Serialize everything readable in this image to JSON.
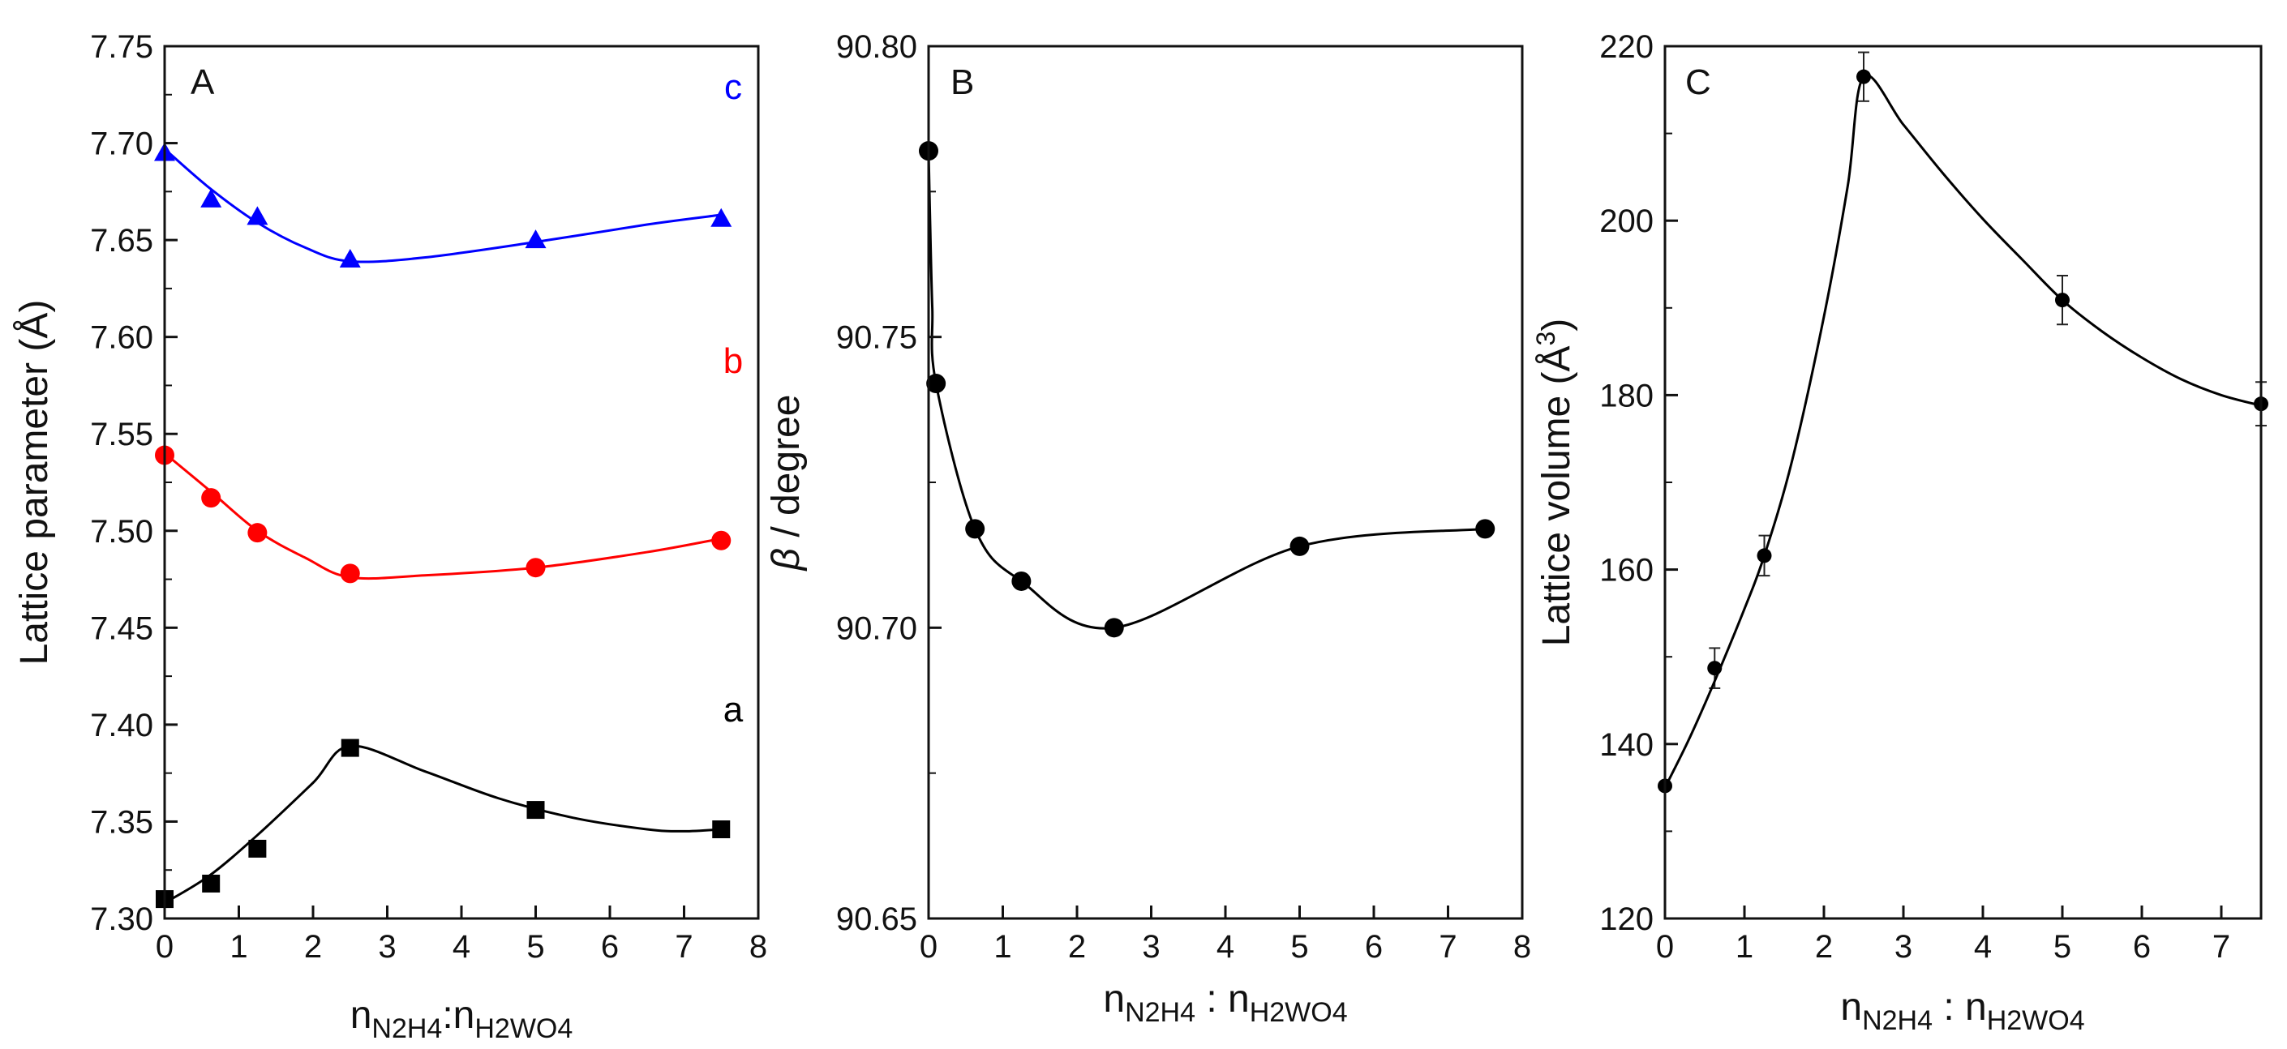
{
  "chart_data": [
    {
      "type": "scatter",
      "panel": "A",
      "xlabel": {
        "main1": "n",
        "sub1": "N2H4",
        "sep": ":",
        "main2": "n",
        "sub2": "H2WO4"
      },
      "ylabel": "Lattice parameter (Å)",
      "xlim": [
        0,
        8
      ],
      "ylim": [
        7.3,
        7.75
      ],
      "xticks": [
        0,
        1,
        2,
        3,
        4,
        5,
        6,
        7,
        8
      ],
      "yticks": [
        "7.30",
        "7.35",
        "7.40",
        "7.45",
        "7.50",
        "7.55",
        "7.60",
        "7.65",
        "7.70",
        "7.75"
      ],
      "series": [
        {
          "name": "a",
          "color": "#000000",
          "marker": "square",
          "x": [
            0,
            0.625,
            1.25,
            2.5,
            5,
            7.5
          ],
          "y": [
            7.31,
            7.318,
            7.336,
            7.388,
            7.356,
            7.346
          ],
          "fit": [
            [
              0,
              7.308
            ],
            [
              0.6,
              7.322
            ],
            [
              1.25,
              7.343
            ],
            [
              2.0,
              7.37
            ],
            [
              2.5,
              7.389
            ],
            [
              3.5,
              7.376
            ],
            [
              4.5,
              7.362
            ],
            [
              5.5,
              7.352
            ],
            [
              6.5,
              7.346
            ],
            [
              7.0,
              7.345
            ],
            [
              7.5,
              7.346
            ]
          ]
        },
        {
          "name": "b",
          "color": "#ff0000",
          "marker": "circle",
          "x": [
            0,
            0.625,
            1.25,
            2.5,
            5,
            7.5
          ],
          "y": [
            7.539,
            7.517,
            7.499,
            7.478,
            7.481,
            7.495
          ],
          "fit": [
            [
              0,
              7.54
            ],
            [
              0.6,
              7.521
            ],
            [
              1.25,
              7.5
            ],
            [
              1.9,
              7.486
            ],
            [
              2.5,
              7.476
            ],
            [
              3.5,
              7.477
            ],
            [
              5,
              7.481
            ],
            [
              6.5,
              7.489
            ],
            [
              7.5,
              7.496
            ]
          ]
        },
        {
          "name": "c",
          "color": "#0000ff",
          "marker": "triangle",
          "x": [
            0,
            0.625,
            1.25,
            2.5,
            5,
            7.5
          ],
          "y": [
            7.695,
            7.671,
            7.662,
            7.64,
            7.65,
            7.661
          ],
          "fit": [
            [
              0,
              7.697
            ],
            [
              0.6,
              7.677
            ],
            [
              1.25,
              7.659
            ],
            [
              1.9,
              7.646
            ],
            [
              2.5,
              7.639
            ],
            [
              3.5,
              7.641
            ],
            [
              5,
              7.649
            ],
            [
              6.5,
              7.658
            ],
            [
              7.5,
              7.663
            ]
          ]
        }
      ]
    },
    {
      "type": "line",
      "panel": "B",
      "xlabel": {
        "main1": "n",
        "sub1": "N2H4",
        "sep": " : ",
        "main2": "n",
        "sub2": "H2WO4"
      },
      "ylabel": {
        "sym": "β",
        "rest": " / degree"
      },
      "xlim": [
        0,
        8
      ],
      "ylim": [
        90.65,
        90.8
      ],
      "xticks": [
        0,
        1,
        2,
        3,
        4,
        5,
        6,
        7,
        8
      ],
      "yticks": [
        "90.65",
        "90.70",
        "90.75",
        "90.80"
      ],
      "series": [
        {
          "name": "beta",
          "color": "#000000",
          "marker": "circle",
          "x": [
            0,
            0.1,
            0.625,
            1.25,
            2.5,
            5,
            7.5
          ],
          "y": [
            90.782,
            90.742,
            90.717,
            90.708,
            90.7,
            90.714,
            90.717
          ],
          "fit": [
            [
              0,
              90.782
            ],
            [
              0.02,
              90.77
            ],
            [
              0.05,
              90.755
            ],
            [
              0.1,
              90.742
            ],
            [
              0.625,
              90.717
            ],
            [
              1.25,
              90.708
            ],
            [
              2.5,
              90.7
            ],
            [
              5,
              90.714
            ],
            [
              7.5,
              90.717
            ]
          ]
        }
      ]
    },
    {
      "type": "scatter",
      "panel": "C",
      "xlabel": {
        "main1": "n",
        "sub1": "N2H4",
        "sep": " : ",
        "main2": "n",
        "sub2": "H2WO4"
      },
      "ylabel": {
        "main": "Lattice volume (",
        "unit": "Å",
        "sup": "3",
        "close": ")"
      },
      "xlim": [
        0,
        7.5
      ],
      "ylim": [
        120,
        220
      ],
      "xticks": [
        0,
        1,
        2,
        3,
        4,
        5,
        6,
        7
      ],
      "yticks": [
        "120",
        "140",
        "160",
        "180",
        "200",
        "220"
      ],
      "series": [
        {
          "name": "volume",
          "color": "#000000",
          "marker": "circle",
          "x": [
            0,
            0.625,
            1.25,
            2.5,
            5,
            7.5
          ],
          "y": [
            135.2,
            148.7,
            161.6,
            216.5,
            190.9,
            179.0
          ],
          "err": [
            0,
            2.3,
            2.3,
            2.8,
            2.8,
            2.5
          ],
          "fit": [
            [
              0,
              135.0
            ],
            [
              0.3,
              140.5
            ],
            [
              0.625,
              147.2
            ],
            [
              1.0,
              155.5
            ],
            [
              1.25,
              161.6
            ],
            [
              1.6,
              172.5
            ],
            [
              2.0,
              189.0
            ],
            [
              2.3,
              204.0
            ],
            [
              2.5,
              216.5
            ],
            [
              3.0,
              211.0
            ],
            [
              3.5,
              205.4
            ],
            [
              4.0,
              200.2
            ],
            [
              4.5,
              195.5
            ],
            [
              5.0,
              190.9
            ],
            [
              5.5,
              187.3
            ],
            [
              6.0,
              184.3
            ],
            [
              6.5,
              181.8
            ],
            [
              7.0,
              180.0
            ],
            [
              7.5,
              178.8
            ]
          ]
        }
      ]
    }
  ]
}
